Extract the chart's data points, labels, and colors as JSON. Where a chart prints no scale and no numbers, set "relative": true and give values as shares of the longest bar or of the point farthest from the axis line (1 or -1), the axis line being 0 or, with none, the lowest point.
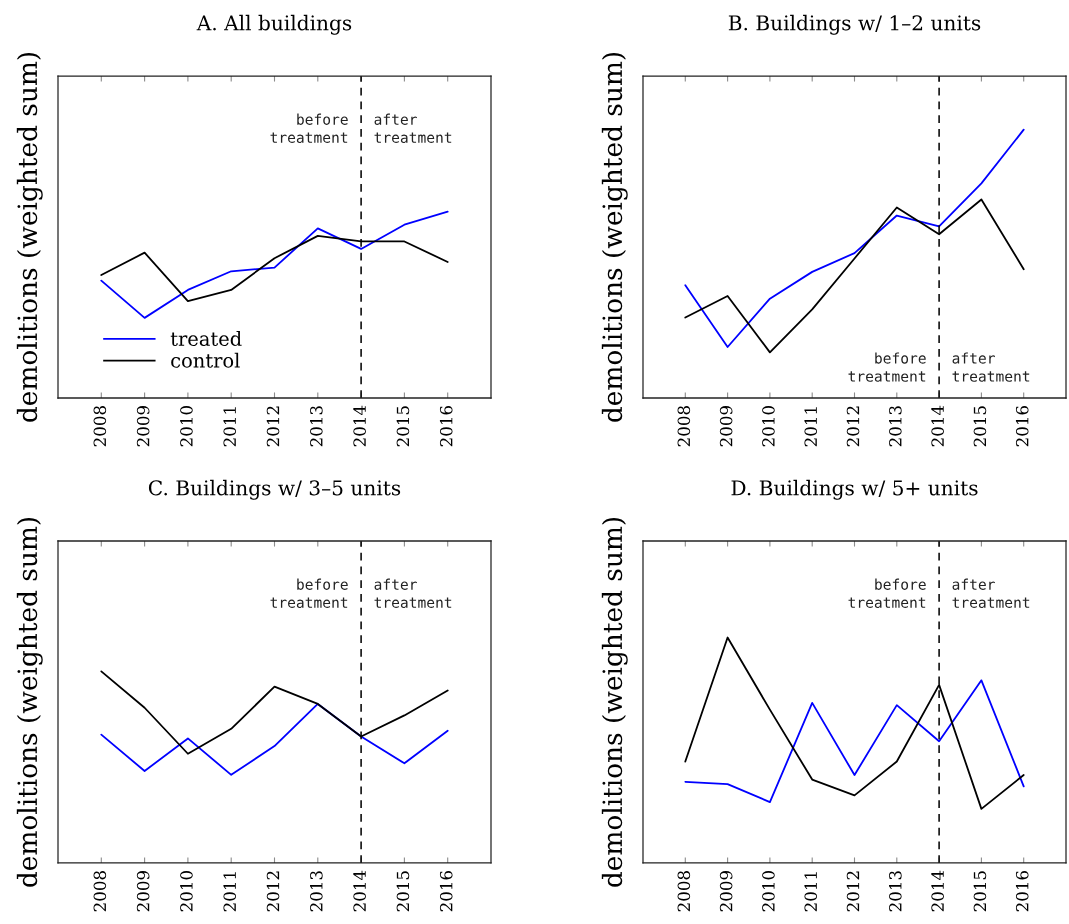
{
  "chart_data": [
    {
      "type": "line",
      "title": "A. All buildings",
      "ylabel": "demolitions (weighted sum)",
      "categories": [
        "2008",
        "2009",
        "2010",
        "2011",
        "2012",
        "2013",
        "2014",
        "2015",
        "2016"
      ],
      "relative": true,
      "tick_labels": "x",
      "legend": "bottom left",
      "series": [
        {
          "name": "treated",
          "color": "#0000ff",
          "values": [
            0.63,
            0.43,
            0.58,
            0.68,
            0.7,
            0.91,
            0.8,
            0.93,
            1.0
          ]
        },
        {
          "name": "control",
          "color": "#000000",
          "values": [
            0.66,
            0.78,
            0.52,
            0.58,
            0.75,
            0.87,
            0.84,
            0.84,
            0.73
          ]
        }
      ],
      "ref_lines": [
        {
          "axis": "x",
          "value": "2014",
          "color": "#000000",
          "line_style": "dashed"
        }
      ],
      "annotations": [
        {
          "text": "before\ntreatment",
          "x": "2014",
          "y": 1.44
        },
        {
          "text": "after\ntreatment",
          "x": "2014",
          "y": 1.44
        }
      ]
    },
    {
      "type": "line",
      "title": "B. Buildings w/ 1–2 units",
      "ylabel": "demolitions (weighted sum)",
      "categories": [
        "2008",
        "2009",
        "2010",
        "2011",
        "2012",
        "2013",
        "2014",
        "2015",
        "2016"
      ],
      "relative": true,
      "tick_labels": "x",
      "series": [
        {
          "color": "#0000ff",
          "values": [
            0.42,
            0.19,
            0.37,
            0.47,
            0.54,
            0.68,
            0.64,
            0.8,
            1.0
          ]
        },
        {
          "color": "#000000",
          "values": [
            0.3,
            0.38,
            0.17,
            0.33,
            0.52,
            0.71,
            0.61,
            0.74,
            0.48
          ]
        }
      ],
      "ref_lines": [
        {
          "axis": "x",
          "value": "2014",
          "color": "#000000",
          "line_style": "dashed"
        }
      ],
      "annotations": [
        {
          "text": "before\ntreatment",
          "x": "2014",
          "y": 0.11
        },
        {
          "text": "after\ntreatment",
          "x": "2014",
          "y": 0.11
        }
      ]
    },
    {
      "type": "line",
      "title": "C. Buildings w/ 3–5 units",
      "ylabel": "demolitions (weighted sum)",
      "categories": [
        "2008",
        "2009",
        "2010",
        "2011",
        "2012",
        "2013",
        "2014",
        "2015",
        "2016"
      ],
      "relative": true,
      "tick_labels": "x",
      "series": [
        {
          "color": "#0000ff",
          "values": [
            0.67,
            0.48,
            0.65,
            0.46,
            0.61,
            0.83,
            0.66,
            0.52,
            0.69
          ]
        },
        {
          "color": "#000000",
          "values": [
            1.0,
            0.81,
            0.57,
            0.7,
            0.92,
            0.83,
            0.66,
            0.77,
            0.9
          ]
        }
      ],
      "ref_lines": [
        {
          "axis": "x",
          "value": "2014",
          "color": "#000000",
          "line_style": "dashed"
        }
      ],
      "annotations": [
        {
          "text": "before\ntreatment",
          "x": "2014",
          "y": 1.4
        },
        {
          "text": "after\ntreatment",
          "x": "2014",
          "y": 1.4
        }
      ]
    },
    {
      "type": "line",
      "title": "D. Buildings w/ 5+ units",
      "ylabel": "demolitions (weighted sum)",
      "categories": [
        "2008",
        "2009",
        "2010",
        "2011",
        "2012",
        "2013",
        "2014",
        "2015",
        "2016"
      ],
      "relative": true,
      "tick_labels": "x",
      "series": [
        {
          "color": "#0000ff",
          "values": [
            0.36,
            0.35,
            0.27,
            0.71,
            0.39,
            0.7,
            0.54,
            0.81,
            0.34
          ]
        },
        {
          "color": "#000000",
          "values": [
            0.45,
            1.0,
            0.68,
            0.37,
            0.3,
            0.45,
            0.79,
            0.24,
            0.39
          ]
        }
      ],
      "ref_lines": [
        {
          "axis": "x",
          "value": "2014",
          "color": "#000000",
          "line_style": "dashed"
        }
      ],
      "annotations": [
        {
          "text": "before\ntreatment",
          "x": "2014",
          "y": 1.19
        },
        {
          "text": "after\ntreatment",
          "x": "2014",
          "y": 1.19
        }
      ]
    }
  ]
}
